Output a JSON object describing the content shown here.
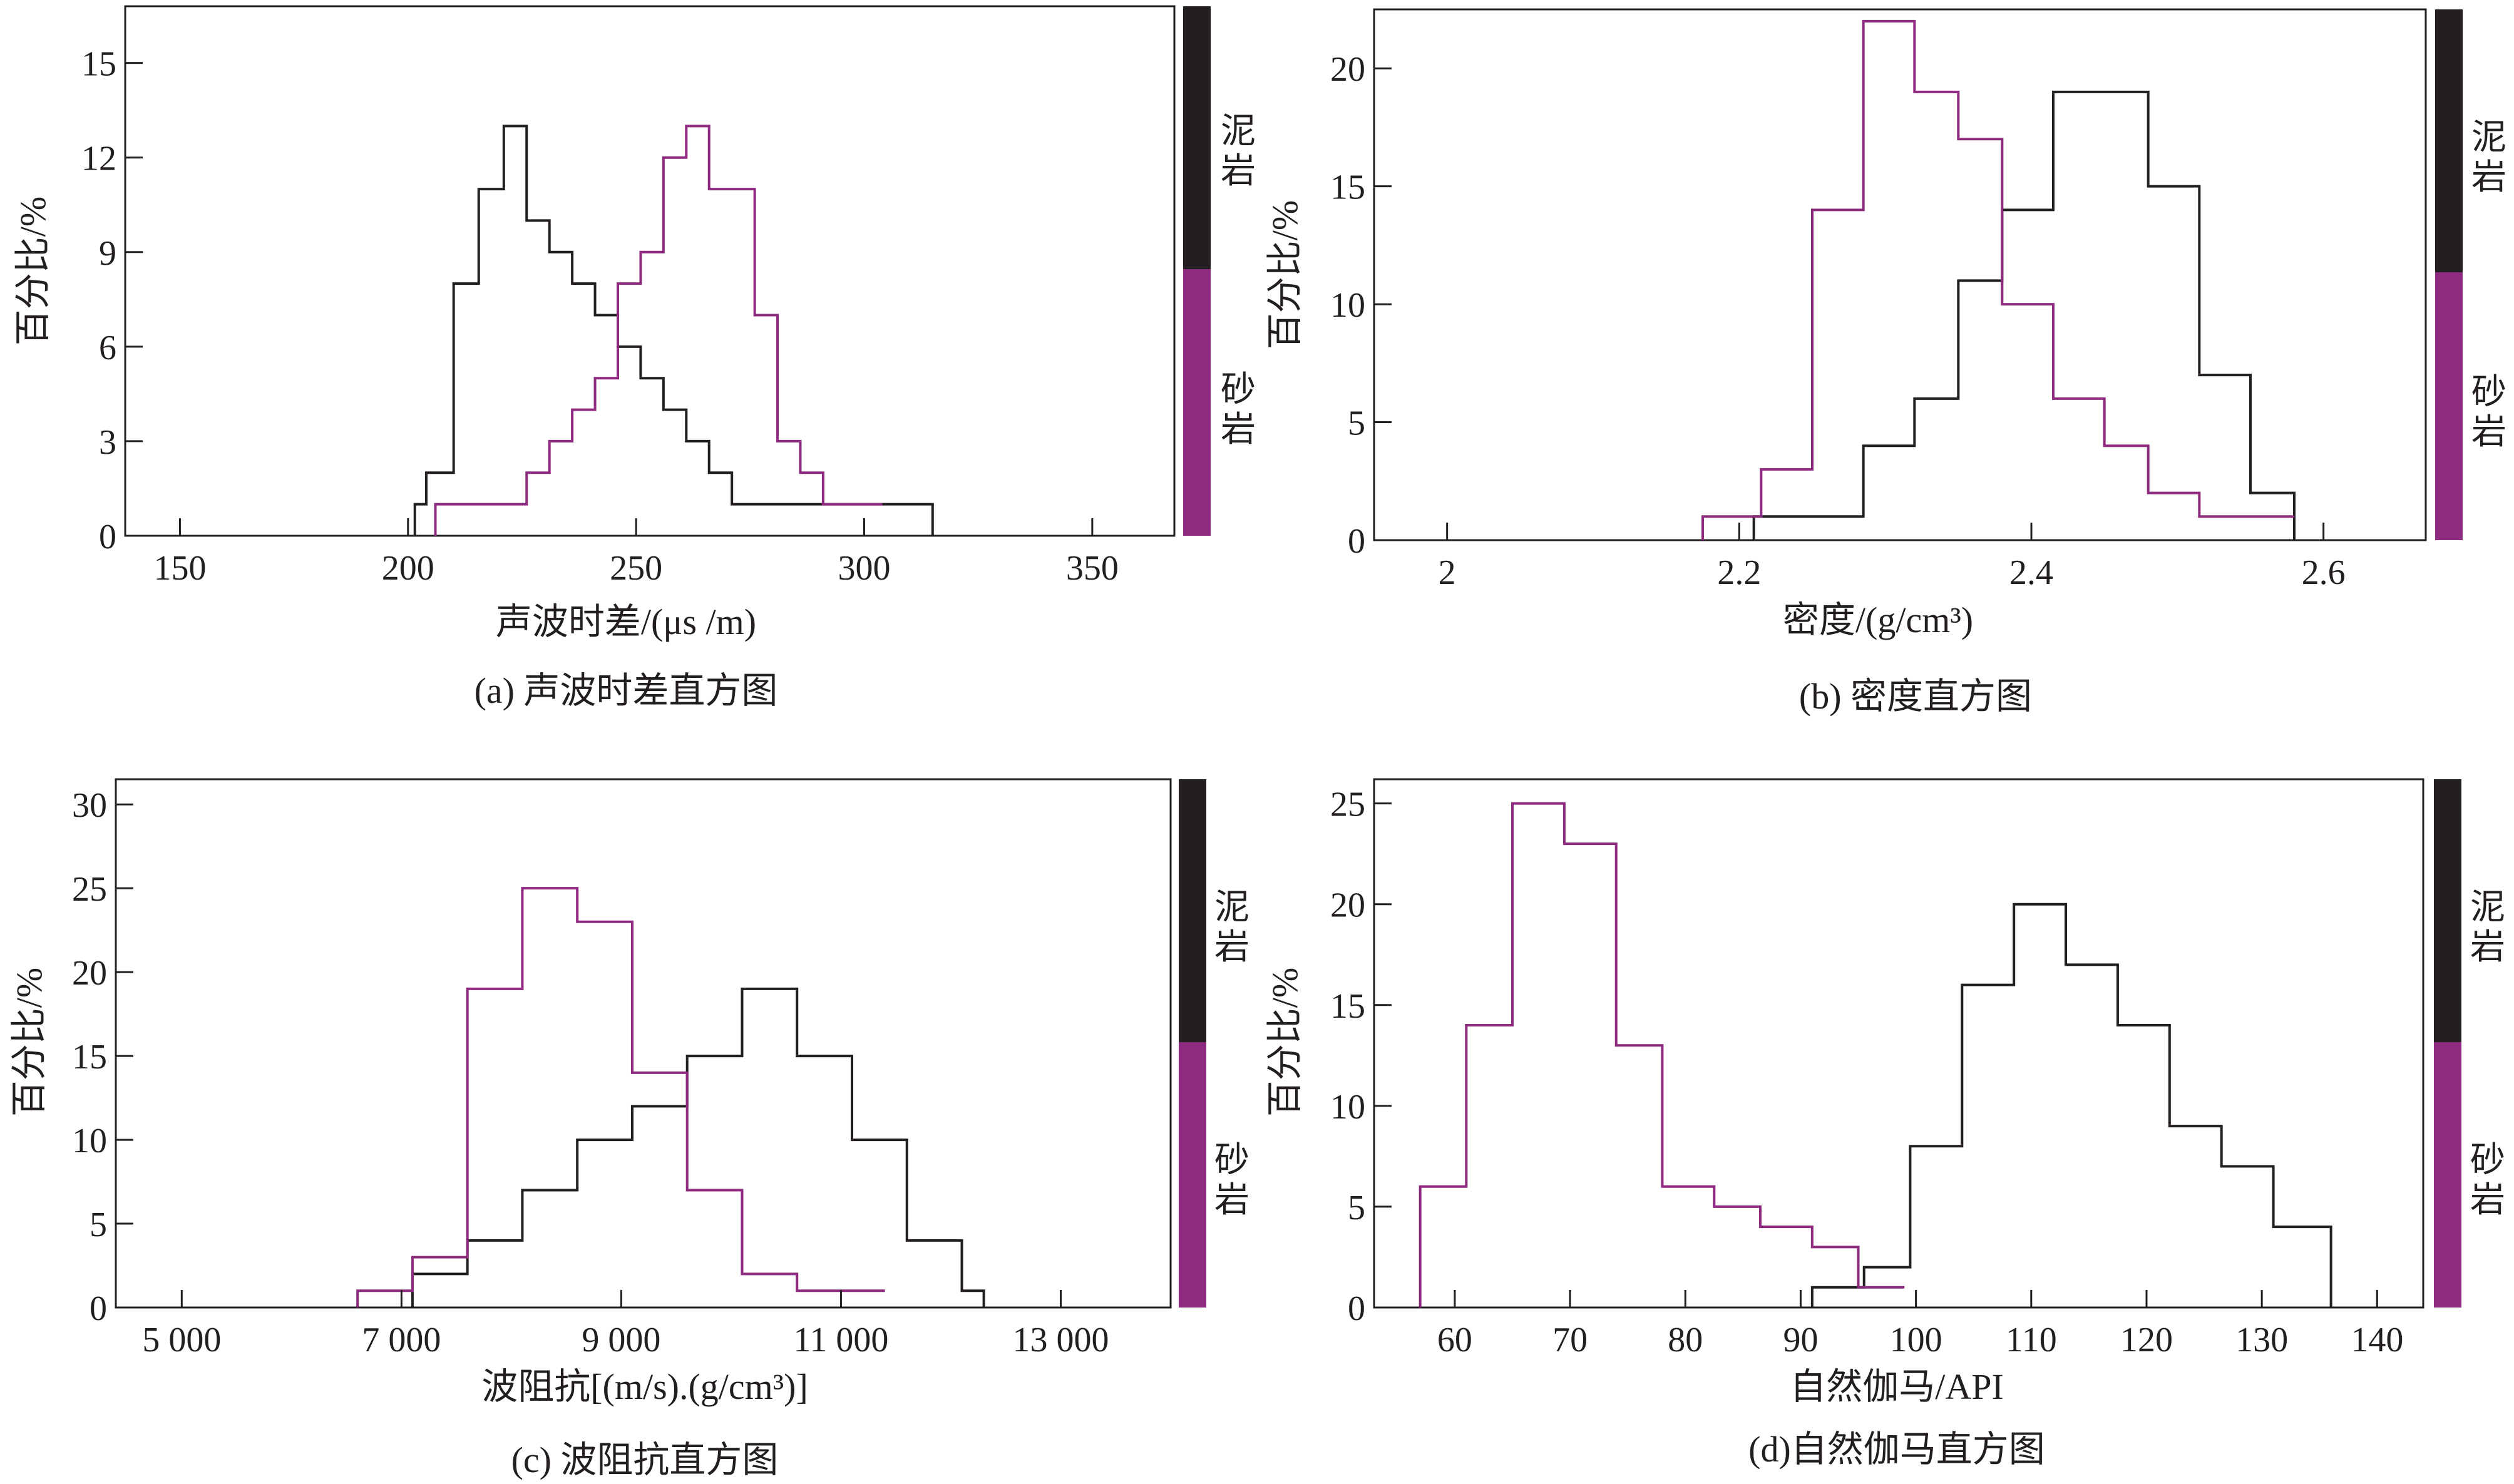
{
  "colors": {
    "mudstone": "#231f20",
    "sandstone": "#8e2a7f",
    "axis": "#231f20"
  },
  "chart_data": [
    {
      "type": "histogram",
      "caption": "(a) 声波时差直方图",
      "xlabel": "声波时差/(μs /m)",
      "ylabel": "百分比/%",
      "xlim": [
        138,
        368
      ],
      "ylim": [
        0,
        16.8
      ],
      "xticks": [
        150,
        200,
        250,
        300,
        350
      ],
      "yticks": [
        0,
        3,
        6,
        9,
        12,
        15
      ],
      "legend": {
        "position": "right",
        "entries": [
          {
            "label": "泥岩",
            "color": "#231f20"
          },
          {
            "label": "砂岩",
            "color": "#8e2a7f"
          }
        ]
      },
      "series": [
        {
          "name": "泥岩",
          "color": "#231f20",
          "edges": [
            201.5,
            204,
            210,
            215.5,
            221,
            226,
            231,
            236,
            241,
            246,
            251,
            256,
            261,
            266,
            271,
            281,
            315
          ],
          "values": [
            1,
            2,
            8,
            11,
            13,
            10,
            9,
            8,
            7,
            6,
            5,
            4,
            3,
            2,
            1,
            1
          ]
        },
        {
          "name": "砂岩",
          "color": "#8e2a7f",
          "edges": [
            206,
            226,
            231,
            236,
            241,
            246,
            251,
            256,
            261,
            266,
            276,
            281,
            286,
            291,
            296,
            304
          ],
          "values": [
            1,
            2,
            3,
            4,
            5,
            8,
            9,
            12,
            13,
            11,
            7,
            3,
            2,
            1,
            1
          ]
        }
      ]
    },
    {
      "type": "histogram",
      "caption": "(b) 密度直方图",
      "xlabel": "密度/(g/cm³)",
      "ylabel": "百分比/%",
      "xlim": [
        1.95,
        2.67
      ],
      "ylim": [
        0,
        22.5
      ],
      "xticks": [
        2.0,
        2.2,
        2.4,
        2.6
      ],
      "yticks": [
        0,
        5,
        10,
        15,
        20
      ],
      "legend": {
        "position": "right",
        "entries": [
          {
            "label": "泥岩",
            "color": "#231f20"
          },
          {
            "label": "砂岩",
            "color": "#8e2a7f"
          }
        ]
      },
      "series": [
        {
          "name": "泥岩",
          "color": "#231f20",
          "edges": [
            2.21,
            2.285,
            2.32,
            2.35,
            2.38,
            2.415,
            2.48,
            2.515,
            2.55,
            2.58
          ],
          "values": [
            1,
            4,
            6,
            11,
            14,
            19,
            15,
            7,
            2
          ]
        },
        {
          "name": "砂岩",
          "color": "#8e2a7f",
          "edges": [
            2.175,
            2.215,
            2.25,
            2.285,
            2.32,
            2.35,
            2.38,
            2.415,
            2.45,
            2.48,
            2.515,
            2.58
          ],
          "values": [
            1,
            3,
            14,
            22,
            19,
            17,
            10,
            6,
            4,
            2,
            1
          ]
        }
      ]
    },
    {
      "type": "histogram",
      "caption": "(c) 波阻抗直方图",
      "xlabel": "波阻抗[(m/s).(g/cm³)]",
      "ylabel": "百分比/%",
      "xlim": [
        4400,
        14000
      ],
      "ylim": [
        0,
        31.5
      ],
      "xticks": [
        5000,
        7000,
        9000,
        11000,
        13000
      ],
      "xtick_labels": [
        "5 000",
        "7 000",
        "9 000",
        "11 000",
        "13 000"
      ],
      "yticks": [
        0,
        5,
        10,
        15,
        20,
        25,
        30
      ],
      "legend": {
        "position": "right",
        "entries": [
          {
            "label": "泥岩",
            "color": "#231f20"
          },
          {
            "label": "砂岩",
            "color": "#8e2a7f"
          }
        ]
      },
      "series": [
        {
          "name": "泥岩",
          "color": "#231f20",
          "edges": [
            7100,
            7600,
            8100,
            8600,
            9100,
            9600,
            10100,
            10600,
            11100,
            11600,
            12100,
            12300
          ],
          "values": [
            2,
            4,
            7,
            10,
            12,
            15,
            19,
            15,
            10,
            4,
            1
          ]
        },
        {
          "name": "砂岩",
          "color": "#8e2a7f",
          "edges": [
            6600,
            7100,
            7600,
            8100,
            8600,
            9100,
            9600,
            10100,
            10600,
            11400
          ],
          "values": [
            1,
            3,
            19,
            25,
            23,
            14,
            7,
            2,
            1
          ]
        }
      ]
    },
    {
      "type": "histogram",
      "caption": "(d)自然伽马直方图",
      "xlabel": "自然伽马/API",
      "ylabel": "百分比/%",
      "xlim": [
        53,
        144
      ],
      "ylim": [
        0,
        26.2
      ],
      "xticks": [
        60,
        70,
        80,
        90,
        100,
        110,
        120,
        130,
        140
      ],
      "yticks": [
        0,
        5,
        10,
        15,
        20,
        25
      ],
      "legend": {
        "position": "right",
        "entries": [
          {
            "label": "泥岩",
            "color": "#231f20"
          },
          {
            "label": "砂岩",
            "color": "#8e2a7f"
          }
        ]
      },
      "series": [
        {
          "name": "泥岩",
          "color": "#231f20",
          "edges": [
            91,
            95.5,
            99.5,
            104,
            108.5,
            113,
            117.5,
            122,
            126.5,
            131,
            136
          ],
          "values": [
            1,
            2,
            8,
            16,
            20,
            17,
            14,
            9,
            7,
            4
          ]
        },
        {
          "name": "砂岩",
          "color": "#8e2a7f",
          "edges": [
            57,
            61,
            65,
            69.5,
            74,
            78,
            82.5,
            86.5,
            91,
            95,
            99
          ],
          "values": [
            6,
            14,
            25,
            23,
            13,
            6,
            5,
            4,
            3,
            1
          ]
        }
      ]
    }
  ]
}
